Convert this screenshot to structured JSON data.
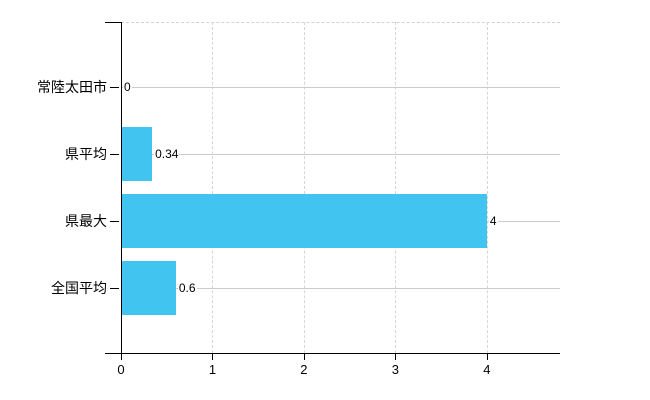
{
  "chart_data": {
    "type": "bar",
    "orientation": "horizontal",
    "title": "",
    "categories": [
      "常陸太田市",
      "県平均",
      "県最大",
      "全国平均"
    ],
    "values": [
      0,
      0.34,
      4,
      0.6
    ],
    "value_labels": [
      "0",
      "0.34",
      "4",
      "0.6"
    ],
    "x_ticks": [
      0,
      1,
      2,
      3,
      4
    ],
    "xlim": [
      0,
      4.8
    ],
    "grid": true,
    "legend": "none",
    "bar_color": "#42C4F0",
    "axis_color": "#000000",
    "grid_color": "#D4D8D4"
  }
}
